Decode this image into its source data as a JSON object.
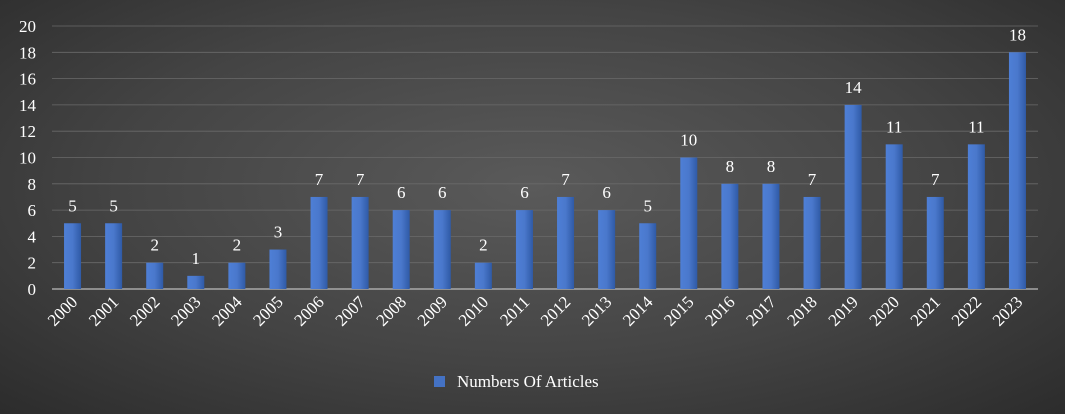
{
  "chart_data": {
    "type": "bar",
    "title": "",
    "xlabel": "",
    "ylabel": "",
    "ylim": [
      0,
      20
    ],
    "yticks": [
      0,
      2,
      4,
      6,
      8,
      10,
      12,
      14,
      16,
      18,
      20
    ],
    "grid": true,
    "legend_position": "bottom",
    "categories": [
      "2000",
      "2001",
      "2002",
      "2003",
      "2004",
      "2005",
      "2006",
      "2007",
      "2008",
      "2009",
      "2010",
      "2011",
      "2012",
      "2013",
      "2014",
      "2015",
      "2016",
      "2017",
      "2018",
      "2019",
      "2020",
      "2021",
      "2022",
      "2023"
    ],
    "series": [
      {
        "name": "Numbers Of Articles",
        "color": "#4472c4",
        "values": [
          5,
          5,
          2,
          1,
          2,
          3,
          7,
          7,
          6,
          6,
          2,
          6,
          7,
          6,
          5,
          10,
          8,
          8,
          7,
          14,
          11,
          7,
          11,
          18
        ]
      }
    ]
  }
}
